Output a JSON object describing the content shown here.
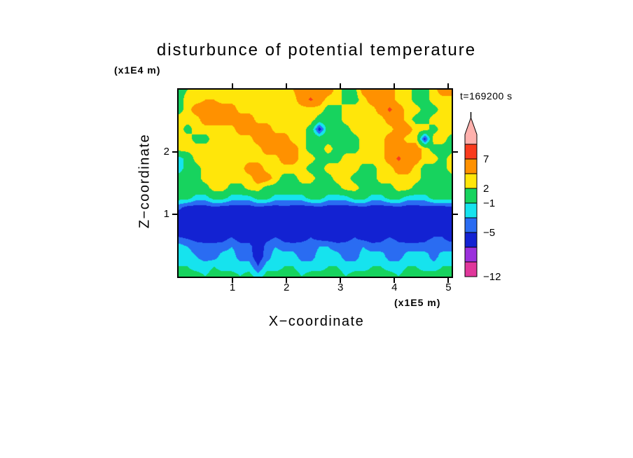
{
  "chart_data": {
    "type": "filled_contour",
    "title": "disturbunce of potential temperature",
    "xlabel": "X−coordinate",
    "ylabel": "Z−coordinate",
    "x_unit_label": "(x1E5 m)",
    "y_unit_label": "(x1E4 m)",
    "time_label": "t=169200 s",
    "x_range": [
      0,
      5.06
    ],
    "z_range": [
      0,
      3
    ],
    "x_ticks": [
      1,
      2,
      3,
      4,
      5
    ],
    "y_ticks": [
      1,
      2
    ],
    "levels": [
      -12,
      -9,
      -7,
      -5,
      -3,
      -1,
      2,
      4,
      7,
      9
    ],
    "colors": [
      "#e0379b",
      "#9b30dc",
      "#1322d2",
      "#2a6cf2",
      "#16e3ee",
      "#17d35e",
      "#ffe60a",
      "#ff9100",
      "#fa3b1d",
      "#ffb1ad"
    ],
    "colorbar_labels": [
      7,
      2,
      -1,
      -5,
      -12
    ],
    "grid_rows_order": "top-to-bottom",
    "grid": [
      [
        1,
        2,
        3,
        3,
        3,
        3,
        3,
        3,
        3,
        3,
        3,
        3,
        3,
        4,
        5.5,
        5.5,
        5.5,
        5.5,
        3,
        1,
        1,
        5.5,
        5.5,
        5.5,
        5.5,
        3,
        3,
        1,
        1,
        3,
        5.5,
        5.5
      ],
      [
        1,
        3,
        3,
        4,
        4,
        3,
        3,
        3,
        3,
        3,
        3,
        3,
        3,
        3,
        5.5,
        7.5,
        5.5,
        3,
        3,
        1,
        1,
        3,
        5.5,
        5.5,
        5.5,
        3,
        3,
        1,
        1,
        3,
        3,
        3
      ],
      [
        1,
        3,
        5.5,
        5.5,
        5.5,
        5.5,
        5.5,
        3,
        3,
        3,
        3,
        3,
        3,
        3,
        3,
        3,
        3,
        1,
        1,
        3,
        3,
        3,
        3,
        5.5,
        7.5,
        5.5,
        3,
        3,
        1,
        1,
        3,
        3
      ],
      [
        3,
        3,
        3,
        5.5,
        5.5,
        5.5,
        5.5,
        5.5,
        5.5,
        3,
        3,
        3,
        3,
        3,
        3,
        3,
        1,
        1,
        1,
        3,
        3,
        3,
        3,
        3,
        5.5,
        5.5,
        3,
        1,
        1,
        3,
        3,
        3
      ],
      [
        3,
        1,
        3,
        3,
        3,
        3,
        3,
        5.5,
        5.5,
        5.5,
        5.5,
        3,
        3,
        3,
        3,
        1,
        -6.5,
        1,
        1,
        1,
        3,
        3,
        3,
        3,
        3,
        5.5,
        5.5,
        3,
        3,
        1,
        3,
        3
      ],
      [
        3,
        3,
        1,
        1,
        3,
        3,
        3,
        3,
        3,
        5.5,
        5.5,
        5.5,
        5.5,
        3,
        3,
        1,
        1,
        1,
        1,
        1,
        1,
        3,
        3,
        3,
        5.5,
        5.5,
        3,
        3,
        -6,
        3,
        3,
        1
      ],
      [
        3,
        3,
        3,
        3,
        3,
        3,
        3,
        3,
        3,
        3,
        5.5,
        5.5,
        5.5,
        5.5,
        3,
        1,
        1,
        3,
        1,
        1,
        1,
        3,
        3,
        3,
        5.5,
        5.5,
        5.5,
        5.5,
        3,
        1,
        1,
        1
      ],
      [
        -2,
        0,
        3,
        3,
        3,
        3,
        3,
        3,
        3,
        3,
        3,
        3,
        5.5,
        5.5,
        3,
        3,
        1,
        1,
        1,
        3,
        3,
        3,
        3,
        3,
        5.5,
        7.5,
        5.5,
        5.5,
        3,
        3,
        1,
        3
      ],
      [
        -2,
        0,
        1,
        3,
        3,
        3,
        3,
        3,
        5.5,
        5.5,
        3,
        3,
        3,
        3,
        3,
        1,
        1,
        3,
        3,
        3,
        3,
        1,
        1,
        3,
        3,
        5.5,
        5.5,
        3,
        1,
        1,
        1,
        3
      ],
      [
        0,
        1,
        1,
        3,
        3,
        3,
        3,
        3,
        3,
        5.5,
        5.5,
        3,
        1,
        1,
        3,
        3,
        1,
        1,
        3,
        3,
        1,
        1,
        1,
        3,
        3,
        3,
        3,
        3,
        1,
        1,
        1,
        1
      ],
      [
        1,
        1,
        1,
        1,
        3,
        3,
        1,
        1,
        3,
        3,
        1,
        1,
        1,
        1,
        1,
        1,
        1,
        1,
        1,
        3,
        3,
        1,
        1,
        1,
        1,
        3,
        3,
        1,
        1,
        1,
        1,
        1
      ],
      [
        0,
        0,
        -2,
        -2,
        0,
        0,
        -2,
        -2,
        -2,
        0,
        0,
        -2,
        -2,
        -2,
        -2,
        0,
        0,
        -2,
        -2,
        -2,
        0,
        0,
        -2,
        -2,
        0,
        0,
        -2,
        -2,
        -2,
        0,
        0,
        0
      ],
      [
        -4.5,
        -6,
        -6,
        -6,
        -5.5,
        -6,
        -6,
        -6,
        -6,
        -5.5,
        -6,
        -6,
        -5.5,
        -6,
        -6,
        -6,
        -5.5,
        -6,
        -6,
        -6,
        -6,
        -5.5,
        -6,
        -6,
        -6,
        -5.5,
        -6,
        -6,
        -5.5,
        -6,
        -6,
        -5.5
      ],
      [
        -6.5,
        -6.5,
        -6.5,
        -6.5,
        -6.5,
        -6.5,
        -6.5,
        -6.5,
        -6.5,
        -6.5,
        -6.5,
        -6.5,
        -6.5,
        -6.5,
        -6.5,
        -6.5,
        -6.5,
        -6.5,
        -6.5,
        -6.5,
        -6.5,
        -6.5,
        -6.5,
        -6.5,
        -6.5,
        -6.5,
        -6.5,
        -6.5,
        -6.5,
        -6.5,
        -6.5,
        -6.5
      ],
      [
        -6.5,
        -6.5,
        -6,
        -6.5,
        -6.5,
        -6.5,
        -6.5,
        -6,
        -6.5,
        -6.5,
        -6.5,
        -6.5,
        -6.5,
        -6,
        -6.5,
        -6.5,
        -6.5,
        -6.5,
        -6,
        -6.5,
        -6.5,
        -6.5,
        -6.5,
        -6.5,
        -6,
        -6.5,
        -6.5,
        -6.5,
        -6.5,
        -6.5,
        -6.5,
        -6.5
      ],
      [
        -5,
        -5.5,
        -6,
        -6.5,
        -6.5,
        -6,
        -5,
        -6.5,
        -6.5,
        -7,
        -6,
        -5,
        -6,
        -6.5,
        -6,
        -5,
        -6,
        -6.5,
        -6.5,
        -6,
        -5,
        -6,
        -6.5,
        -6,
        -5,
        -6,
        -6.5,
        -6.5,
        -6,
        -5,
        -5,
        -6
      ],
      [
        -2,
        -3,
        -4,
        -4,
        -4,
        -4,
        -3,
        -4,
        -4,
        -7,
        -4,
        -3,
        -4,
        -4,
        -4,
        -4,
        -3,
        -3,
        -4,
        -4,
        -4,
        -3,
        -4,
        -4,
        -3,
        -4,
        -4,
        -4,
        -4,
        -3,
        -4,
        -4
      ],
      [
        -2,
        -2,
        -3,
        -4,
        -4,
        -2,
        -2,
        -4,
        -4,
        -6.5,
        -4,
        -2,
        -2,
        -2,
        -4,
        -4,
        -2,
        -2,
        -2,
        -4,
        -4,
        -2,
        -2,
        -2,
        -4,
        -4,
        -2,
        -2,
        -2,
        -4,
        -2,
        -2
      ],
      [
        -1,
        -1,
        -2,
        -2,
        -1,
        -2,
        -2,
        -2,
        -2,
        -5,
        -2,
        -2,
        -1,
        -1,
        -2,
        -2,
        -2,
        -1,
        -1,
        -2,
        -2,
        -2,
        -1,
        -1,
        -2,
        -2,
        -1,
        -1,
        -2,
        -2,
        -1,
        -1
      ],
      [
        0,
        0,
        0,
        -1,
        0,
        0,
        0,
        -1,
        0,
        -2,
        0,
        0,
        0,
        0,
        -1,
        0,
        0,
        0,
        0,
        -1,
        0,
        0,
        0,
        0,
        0,
        -1,
        0,
        0,
        0,
        0,
        0,
        0
      ]
    ]
  }
}
